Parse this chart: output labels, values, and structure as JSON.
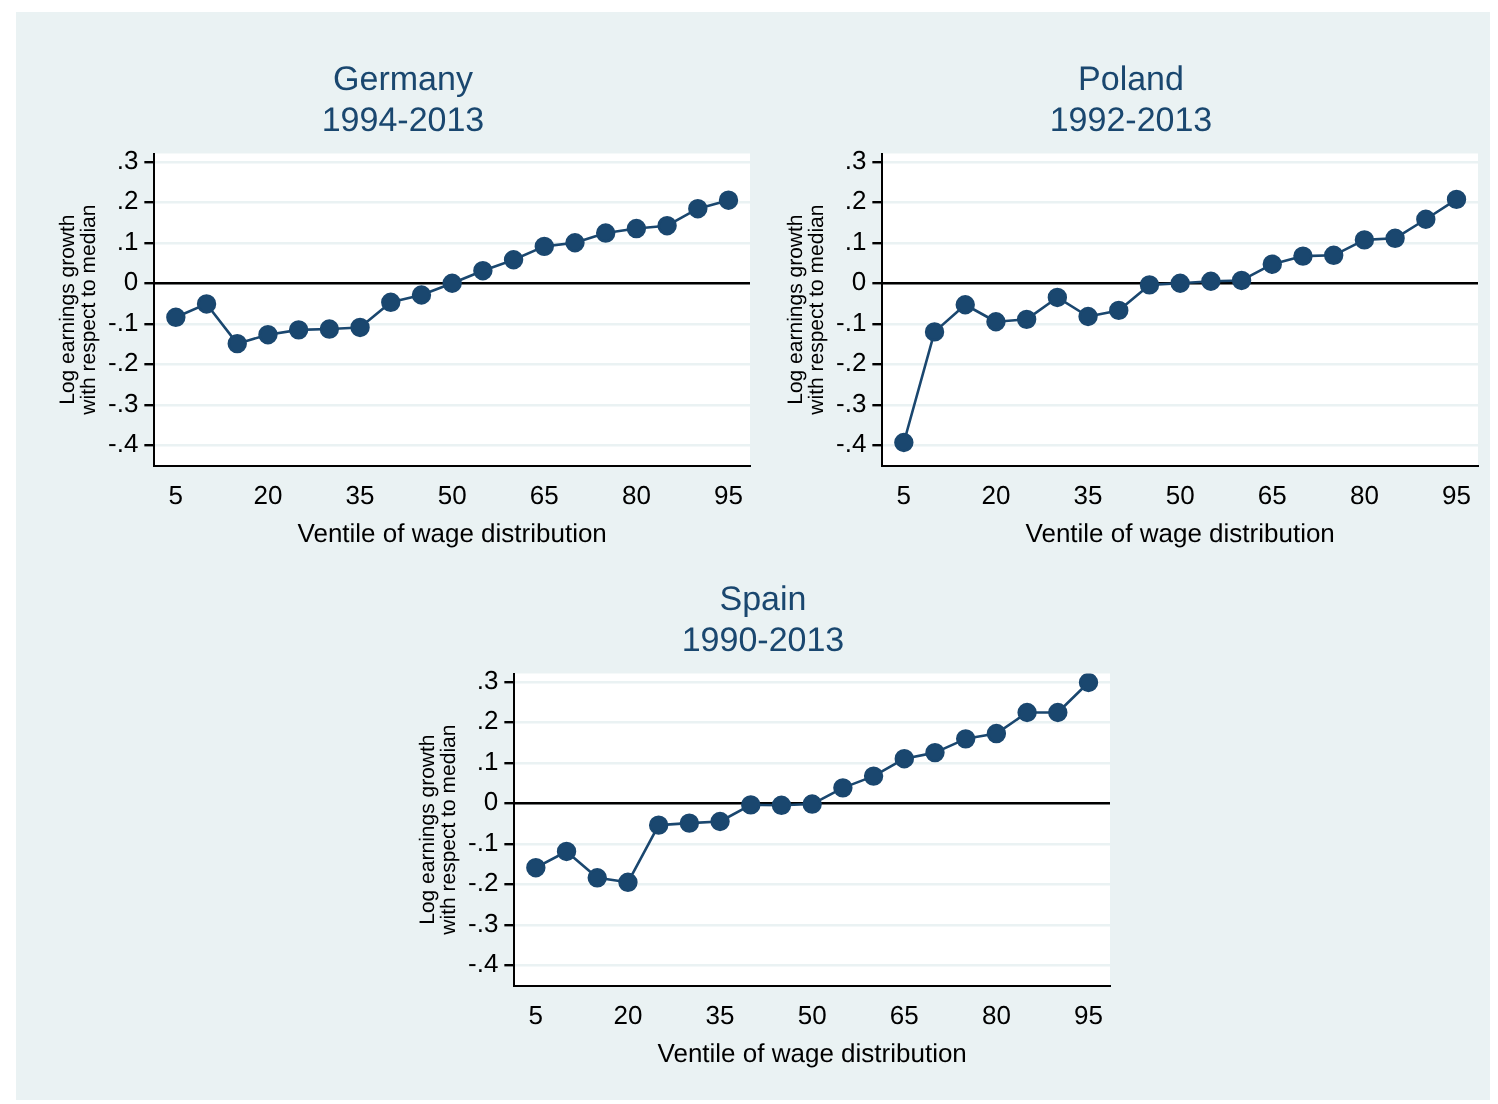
{
  "chart_data": [
    {
      "type": "line",
      "title": "Germany",
      "subtitle": "1994-2013",
      "xlabel": "Ventile of wage distribution",
      "ylabel": "Log earnings growth\nwith respect to median",
      "x": [
        5,
        10,
        15,
        20,
        25,
        30,
        35,
        40,
        45,
        50,
        55,
        60,
        65,
        70,
        75,
        80,
        85,
        90,
        95
      ],
      "values": [
        -0.084,
        -0.051,
        -0.149,
        -0.127,
        -0.115,
        -0.113,
        -0.109,
        -0.047,
        -0.029,
        0,
        0.031,
        0.058,
        0.091,
        0.1,
        0.124,
        0.135,
        0.142,
        0.184,
        0.205
      ],
      "color": "#1a476f",
      "marker": "circle",
      "grid": "y",
      "xlim": [
        1.5,
        98.5
      ],
      "xticks": [
        5,
        20,
        35,
        50,
        65,
        80,
        95
      ],
      "ylim": [
        -0.45,
        0.32
      ],
      "yticks": [
        {
          "value": -0.4,
          "label": "-.4"
        },
        {
          "value": -0.3,
          "label": "-.3"
        },
        {
          "value": -0.2,
          "label": "-.2"
        },
        {
          "value": -0.1,
          "label": "-.1"
        },
        {
          "value": 0,
          "label": "0"
        },
        {
          "value": 0.1,
          "label": ".1"
        },
        {
          "value": 0.2,
          "label": ".2"
        },
        {
          "value": 0.3,
          "label": ".3"
        }
      ],
      "ref_lines": [
        {
          "axis": "y",
          "value": 0,
          "color": "#000000"
        }
      ]
    },
    {
      "type": "line",
      "title": "Poland",
      "subtitle": "1992-2013",
      "xlabel": "Ventile of wage distribution",
      "ylabel": "Log earnings growth\nwith respect to median",
      "x": [
        5,
        10,
        15,
        20,
        25,
        30,
        35,
        40,
        45,
        50,
        55,
        60,
        65,
        70,
        75,
        80,
        85,
        90,
        95
      ],
      "values": [
        -0.393,
        -0.12,
        -0.053,
        -0.095,
        -0.089,
        -0.035,
        -0.082,
        -0.067,
        -0.004,
        0,
        0.005,
        0.007,
        0.047,
        0.067,
        0.069,
        0.107,
        0.111,
        0.158,
        0.207
      ],
      "color": "#1a476f",
      "marker": "circle",
      "grid": "y",
      "xlim": [
        1.5,
        98.5
      ],
      "xticks": [
        5,
        20,
        35,
        50,
        65,
        80,
        95
      ],
      "ylim": [
        -0.45,
        0.32
      ],
      "yticks": [
        {
          "value": -0.4,
          "label": "-.4"
        },
        {
          "value": -0.3,
          "label": "-.3"
        },
        {
          "value": -0.2,
          "label": "-.2"
        },
        {
          "value": -0.1,
          "label": "-.1"
        },
        {
          "value": 0,
          "label": "0"
        },
        {
          "value": 0.1,
          "label": ".1"
        },
        {
          "value": 0.2,
          "label": ".2"
        },
        {
          "value": 0.3,
          "label": ".3"
        }
      ],
      "ref_lines": [
        {
          "axis": "y",
          "value": 0,
          "color": "#000000"
        }
      ]
    },
    {
      "type": "line",
      "title": "Spain",
      "subtitle": "1990-2013",
      "xlabel": "Ventile of wage distribution",
      "ylabel": "Log earnings growth\nwith respect to median",
      "x": [
        5,
        10,
        15,
        20,
        25,
        30,
        35,
        40,
        45,
        50,
        55,
        60,
        65,
        70,
        75,
        80,
        85,
        90,
        95
      ],
      "values": [
        -0.159,
        -0.119,
        -0.184,
        -0.195,
        -0.054,
        -0.049,
        -0.045,
        -0.004,
        -0.005,
        -0.002,
        0.038,
        0.067,
        0.11,
        0.125,
        0.159,
        0.172,
        0.224,
        0.224,
        0.298
      ],
      "color": "#1a476f",
      "marker": "circle",
      "grid": "y",
      "xlim": [
        1.5,
        98.5
      ],
      "xticks": [
        5,
        20,
        35,
        50,
        65,
        80,
        95
      ],
      "ylim": [
        -0.45,
        0.32
      ],
      "yticks": [
        {
          "value": -0.4,
          "label": "-.4"
        },
        {
          "value": -0.3,
          "label": "-.3"
        },
        {
          "value": -0.2,
          "label": "-.2"
        },
        {
          "value": -0.1,
          "label": "-.1"
        },
        {
          "value": 0,
          "label": "0"
        },
        {
          "value": 0.1,
          "label": ".1"
        },
        {
          "value": 0.2,
          "label": ".2"
        },
        {
          "value": 0.3,
          "label": ".3"
        }
      ],
      "ref_lines": [
        {
          "axis": "y",
          "value": 0,
          "color": "#000000"
        }
      ]
    }
  ]
}
